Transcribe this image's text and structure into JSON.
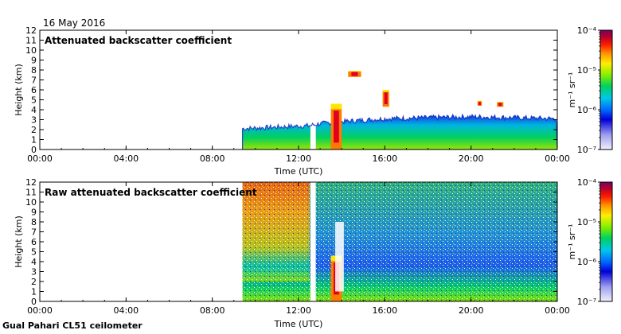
{
  "header": {
    "date": "16 May 2016"
  },
  "footer": {
    "caption": "Gual Pahari CL51 ceilometer"
  },
  "chart_data": [
    {
      "type": "heatmap",
      "title": "Attenuated backscatter coefficient",
      "xlabel": "Time (UTC)",
      "ylabel": "Height (km)",
      "xlim": [
        0,
        24
      ],
      "ylim": [
        0,
        12
      ],
      "x_ticks": [
        0,
        4,
        8,
        12,
        16,
        20,
        24
      ],
      "x_tick_labels": [
        "00:00",
        "04:00",
        "08:00",
        "12:00",
        "16:00",
        "20:00",
        "00:00"
      ],
      "y_ticks": [
        0,
        1,
        2,
        3,
        4,
        5,
        6,
        7,
        8,
        9,
        10,
        11,
        12
      ],
      "y_tick_labels": [
        "0",
        "1",
        "2",
        "3",
        "4",
        "5",
        "6",
        "7",
        "8",
        "9",
        "10",
        "11",
        "12"
      ],
      "data_start_hour": 9.4,
      "gap_hours": [
        12.55,
        12.8
      ],
      "aerosol_layer_top_km": [
        {
          "hour": 9.4,
          "top": 2.1
        },
        {
          "hour": 12.5,
          "top": 2.4
        },
        {
          "hour": 13.0,
          "top": 2.6
        },
        {
          "hour": 14.0,
          "top": 2.8
        },
        {
          "hour": 16.0,
          "top": 3.1
        },
        {
          "hour": 20.0,
          "top": 3.3
        },
        {
          "hour": 24.0,
          "top": 3.1
        }
      ],
      "features": [
        {
          "label": "cloud",
          "hour_start": 13.5,
          "hour_end": 14.0,
          "height_km": [
            0,
            4.6
          ]
        },
        {
          "label": "cloud",
          "hour_start": 14.3,
          "hour_end": 14.9,
          "height_km": [
            7.3,
            7.9
          ]
        },
        {
          "label": "cloud",
          "hour_start": 15.9,
          "hour_end": 16.2,
          "height_km": [
            4.3,
            6.0
          ]
        },
        {
          "label": "cloud",
          "hour_start": 20.3,
          "hour_end": 20.5,
          "height_km": [
            4.4,
            4.9
          ]
        },
        {
          "label": "cloud",
          "hour_start": 21.2,
          "hour_end": 21.5,
          "height_km": [
            4.3,
            4.8
          ]
        }
      ],
      "colorbar": {
        "label": "m⁻¹ sr⁻¹",
        "range_log10": [
          -7,
          -4
        ],
        "tick_labels": [
          "10⁻⁴",
          "10⁻⁵",
          "10⁻⁶",
          "10⁻⁷"
        ]
      }
    },
    {
      "type": "heatmap",
      "title": "Raw attenuated backscatter coefficient",
      "xlabel": "Time (UTC)",
      "ylabel": "Height (km)",
      "xlim": [
        0,
        24
      ],
      "ylim": [
        0,
        12
      ],
      "x_ticks": [
        0,
        4,
        8,
        12,
        16,
        20,
        24
      ],
      "x_tick_labels": [
        "00:00",
        "04:00",
        "08:00",
        "12:00",
        "16:00",
        "20:00",
        "00:00"
      ],
      "y_ticks": [
        0,
        1,
        2,
        3,
        4,
        5,
        6,
        7,
        8,
        9,
        10,
        11,
        12
      ],
      "y_tick_labels": [
        "0",
        "1",
        "2",
        "3",
        "4",
        "5",
        "6",
        "7",
        "8",
        "9",
        "10",
        "11",
        "12"
      ],
      "data_start_hour": 9.4,
      "gap_hours": [
        12.55,
        12.8
      ],
      "features": [
        {
          "label": "high noise (daytime)",
          "hour_start": 9.4,
          "hour_end": 12.5,
          "height_km": [
            2,
            12
          ]
        },
        {
          "label": "cloud",
          "hour_start": 13.5,
          "hour_end": 14.0,
          "height_km": [
            0,
            4.6
          ]
        },
        {
          "label": "saturated column",
          "hour_start": 13.7,
          "hour_end": 14.1,
          "height_km": [
            1,
            8
          ]
        }
      ],
      "colorbar": {
        "label": "m⁻¹ sr⁻¹",
        "range_log10": [
          -7,
          -4
        ],
        "tick_labels": [
          "10⁻⁴",
          "10⁻⁵",
          "10⁻⁶",
          "10⁻⁷"
        ]
      }
    }
  ]
}
